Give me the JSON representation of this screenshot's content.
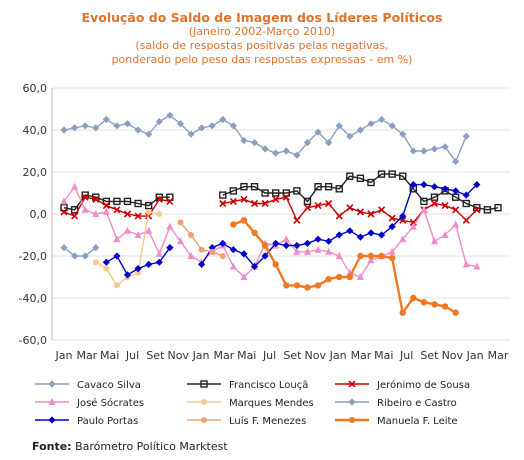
{
  "title": "Evolução do Saldo  de Imagem dos Líderes Políticos",
  "subtitle1": "(Janeiro 2002-Março 2010)",
  "subtitle2": "(saldo de respostas positivas pelas negativas,",
  "subtitle3": "ponderado pelo peso das respostas expressas - em %)",
  "source_label": "Fonte:",
  "source_text": "Barómetro Político Marktest",
  "chart_data": {
    "type": "line",
    "ylim": [
      -60,
      60
    ],
    "yticks": [
      "60,0",
      "40,0",
      "20,0",
      "0,0",
      "-20,0",
      "-40,0",
      "-60,0"
    ],
    "xticks": [
      "Jan",
      "Mar",
      "Mai",
      "Jul",
      "Set",
      "Nov",
      "Jan",
      "Mar",
      "Mai",
      "Jul",
      "Set",
      "Nov",
      "Jan",
      "Mar",
      "Mai",
      "Jul",
      "Set",
      "Nov",
      "Jan",
      "Mar"
    ],
    "grid": true,
    "legend_position": "bottom",
    "series": [
      {
        "name": "Cavaco Silva",
        "color": "#8a9fc0",
        "marker": "diamond",
        "start": 0,
        "values": [
          40,
          41,
          42,
          41,
          45,
          42,
          43,
          40,
          38,
          44,
          47,
          43,
          38,
          41,
          42,
          45,
          42,
          35,
          34,
          31,
          29,
          30,
          28,
          34,
          39,
          34,
          42,
          37,
          40,
          43,
          45,
          42,
          38,
          30,
          30,
          31,
          32,
          25,
          37
        ]
      },
      {
        "name": "Francisco Louçã",
        "color": "#222222",
        "marker": "square",
        "start": 0,
        "values": [
          3,
          2,
          9,
          8,
          6,
          6,
          6,
          5,
          4,
          8,
          8,
          null,
          null,
          null,
          null,
          9,
          11,
          13,
          13,
          10,
          10,
          10,
          11,
          6,
          13,
          13,
          12,
          18,
          17,
          15,
          19,
          19,
          18,
          12,
          6,
          8,
          11,
          8,
          5,
          3,
          2,
          3
        ]
      },
      {
        "name": "Jerónimo de Sousa",
        "color": "#cc0000",
        "marker": "x",
        "start": 0,
        "values": [
          1,
          -1,
          8,
          7,
          4,
          2,
          0,
          -1,
          -1,
          7,
          6,
          null,
          null,
          null,
          null,
          5,
          6,
          7,
          5,
          5,
          7,
          8,
          -3,
          3,
          4,
          5,
          -1,
          3,
          1,
          0,
          2,
          -2,
          -3,
          -4,
          2,
          5,
          4,
          2,
          -3,
          2
        ]
      },
      {
        "name": "José Sócrates",
        "color": "#f08cc8",
        "marker": "triangle",
        "start": 0,
        "values": [
          6,
          13,
          2,
          0,
          1,
          -12,
          -8,
          -10,
          -8,
          -19,
          -6,
          -13,
          -20,
          -23,
          -18,
          -15,
          -25,
          -30,
          -25,
          -14,
          -15,
          -12,
          -18,
          -18,
          -17,
          -18,
          -20,
          -28,
          -30,
          -22,
          -20,
          -18,
          -12,
          -6,
          2,
          -13,
          -10,
          -5,
          -24,
          -25
        ]
      },
      {
        "name": "Marques Mendes",
        "color": "#f8c890",
        "marker": "circle",
        "start": 3,
        "values": [
          -23,
          -26,
          -34,
          -30,
          -28,
          1,
          0
        ]
      },
      {
        "name": "Ribeiro e Castro",
        "color": "#8a9fc0",
        "marker": "diamond",
        "start": 0,
        "values": [
          -16,
          -20,
          -20,
          -16
        ]
      },
      {
        "name": "Paulo Portas",
        "color": "#0000cc",
        "marker": "diamond",
        "start": 4,
        "values": [
          -23,
          -20,
          -29,
          -26,
          -24,
          -23,
          -16,
          null,
          null,
          -24,
          -16,
          -14,
          -17,
          -19,
          -25,
          -20,
          -14,
          -15,
          -15,
          -14,
          -12,
          -13,
          -10,
          -8,
          -11,
          -9,
          -10,
          -6,
          -1,
          14,
          14,
          13,
          12,
          11,
          9,
          14
        ]
      },
      {
        "name": "Luís F. Menezes",
        "color": "#f0a070",
        "marker": "circle",
        "start": 11,
        "values": [
          -4,
          -10,
          -17,
          -18,
          -20
        ]
      },
      {
        "name": "Manuela F. Leite",
        "color": "#f07820",
        "marker": "circle",
        "start": 16,
        "values": [
          -5,
          -3,
          -9,
          -15,
          -24,
          -34,
          -34,
          -35,
          -34,
          -31,
          -30,
          -30,
          -20,
          -20,
          -20,
          -21,
          -47,
          -40,
          -42,
          -43,
          -44,
          -47
        ]
      }
    ]
  }
}
